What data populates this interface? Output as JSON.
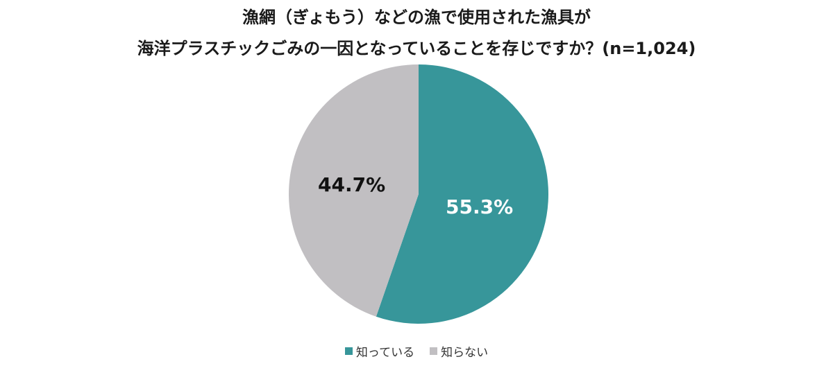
{
  "title": {
    "line1": "漁網（ぎょもう）などの漁で使用された漁具が",
    "line2": "海洋プラスチックごみの一因となっていることを存じですか？(n=1,024)"
  },
  "colors": {
    "known": "#37969A",
    "unknown": "#C1BFC2"
  },
  "slices": [
    {
      "label": "知っている",
      "value": 55.3,
      "display": "55.3%",
      "color": "#37969A"
    },
    {
      "label": "知らない",
      "value": 44.7,
      "display": "44.7%",
      "color": "#C1BFC2"
    }
  ],
  "legend": [
    {
      "label": "知っている",
      "color": "#37969A"
    },
    {
      "label": "知らない",
      "color": "#C1BFC2"
    }
  ],
  "chart_data": {
    "type": "pie",
    "title": "漁網（ぎょもう）などの漁で使用された漁具が海洋プラスチックごみの一因となっていることを存じですか？(n=1,024)",
    "categories": [
      "知っている",
      "知らない"
    ],
    "values": [
      55.3,
      44.7
    ],
    "unit": "%",
    "sample_size": "n=1,024",
    "start_angle": "12 o'clock, clockwise",
    "legend_position": "bottom",
    "colors": [
      "#37969A",
      "#C1BFC2"
    ]
  }
}
